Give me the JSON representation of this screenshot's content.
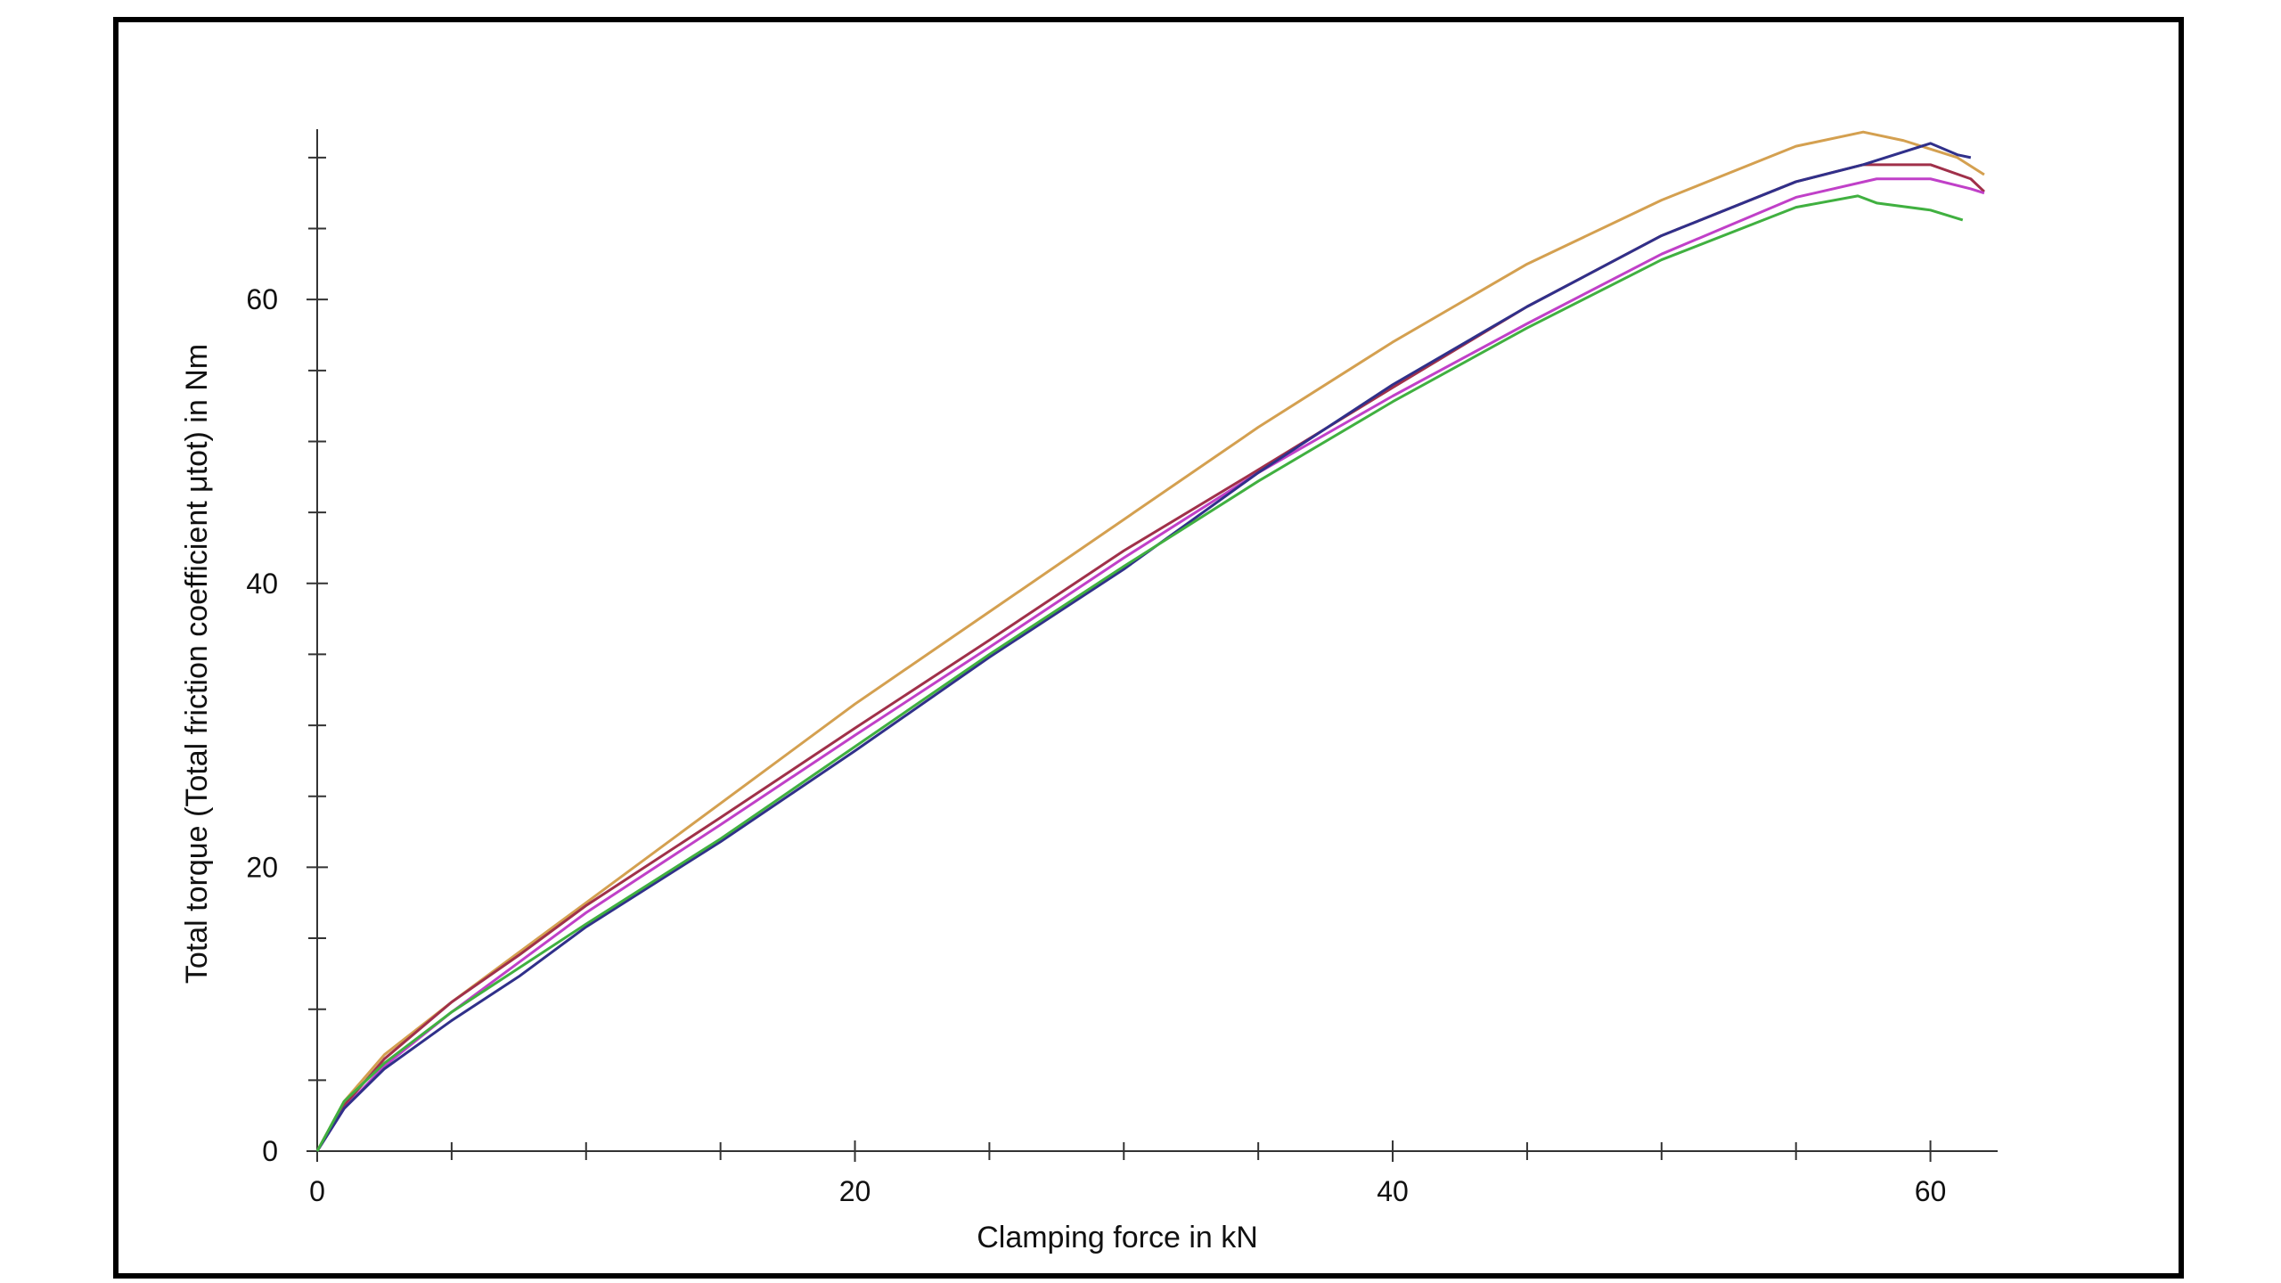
{
  "chart_data": {
    "type": "line",
    "x_label": "Clamping force in kN",
    "y_label": "Total torque (Total friction coefficient μtot) in Nm",
    "xlim": [
      0,
      62.5
    ],
    "ylim": [
      0,
      72
    ],
    "xticks": [
      0,
      20,
      40,
      60
    ],
    "yticks": [
      0,
      20,
      40,
      60
    ],
    "xminorticks": [
      5,
      10,
      15,
      25,
      30,
      35,
      45,
      50,
      55
    ],
    "yminorticks": [
      5,
      10,
      15,
      25,
      30,
      35,
      45,
      50,
      55,
      65,
      70
    ],
    "series": [
      {
        "color": "#d4a050",
        "x": [
          0,
          1,
          2.5,
          5,
          10,
          15,
          20,
          25,
          30,
          35,
          40,
          45,
          50,
          55,
          57.5,
          59,
          61,
          62
        ],
        "values": [
          0,
          3.5,
          6.8,
          10.5,
          17.5,
          24.5,
          31.5,
          38,
          44.5,
          51,
          57,
          62.5,
          67,
          70.8,
          71.8,
          71.2,
          70,
          68.8
        ]
      },
      {
        "color": "#a0304a",
        "x": [
          0,
          1,
          2.5,
          5,
          7.5,
          10,
          15,
          20,
          25,
          30,
          35,
          40,
          45,
          50,
          55,
          57.5,
          60,
          61.5,
          62
        ],
        "values": [
          0,
          3.2,
          6.5,
          10.5,
          13.8,
          17.3,
          23.5,
          29.8,
          36,
          42.3,
          48,
          53.8,
          59.5,
          64.5,
          68.3,
          69.5,
          69.5,
          68.5,
          67.6
        ]
      },
      {
        "color": "#c040c8",
        "x": [
          0,
          1,
          2.5,
          5,
          10,
          15,
          20,
          25,
          30,
          35,
          40,
          45,
          50,
          55,
          58,
          60,
          61.5,
          62
        ],
        "values": [
          0,
          3,
          6,
          9.8,
          16.8,
          23,
          29.3,
          35.5,
          41.8,
          47.8,
          53.2,
          58.3,
          63.2,
          67.2,
          68.5,
          68.5,
          67.8,
          67.5
        ]
      },
      {
        "color": "#30308a",
        "x": [
          0,
          1,
          2.5,
          5,
          7.5,
          10,
          15,
          20,
          25,
          30,
          35,
          40,
          45,
          50,
          55,
          57.5,
          60,
          61,
          61.5
        ],
        "values": [
          0,
          3,
          5.8,
          9.2,
          12.3,
          15.8,
          21.8,
          28.2,
          34.8,
          41,
          47.8,
          54,
          59.5,
          64.5,
          68.3,
          69.5,
          71,
          70.2,
          70
        ]
      },
      {
        "color": "#40b040",
        "x": [
          0,
          1,
          2.5,
          5,
          10,
          15,
          20,
          25,
          30,
          35,
          40,
          45,
          50,
          55,
          57.3,
          58,
          60,
          61.2
        ],
        "values": [
          0,
          3.5,
          6.2,
          9.8,
          16,
          22,
          28.5,
          35,
          41.2,
          47.2,
          52.8,
          58,
          62.8,
          66.5,
          67.3,
          66.8,
          66.3,
          65.6
        ]
      }
    ]
  }
}
